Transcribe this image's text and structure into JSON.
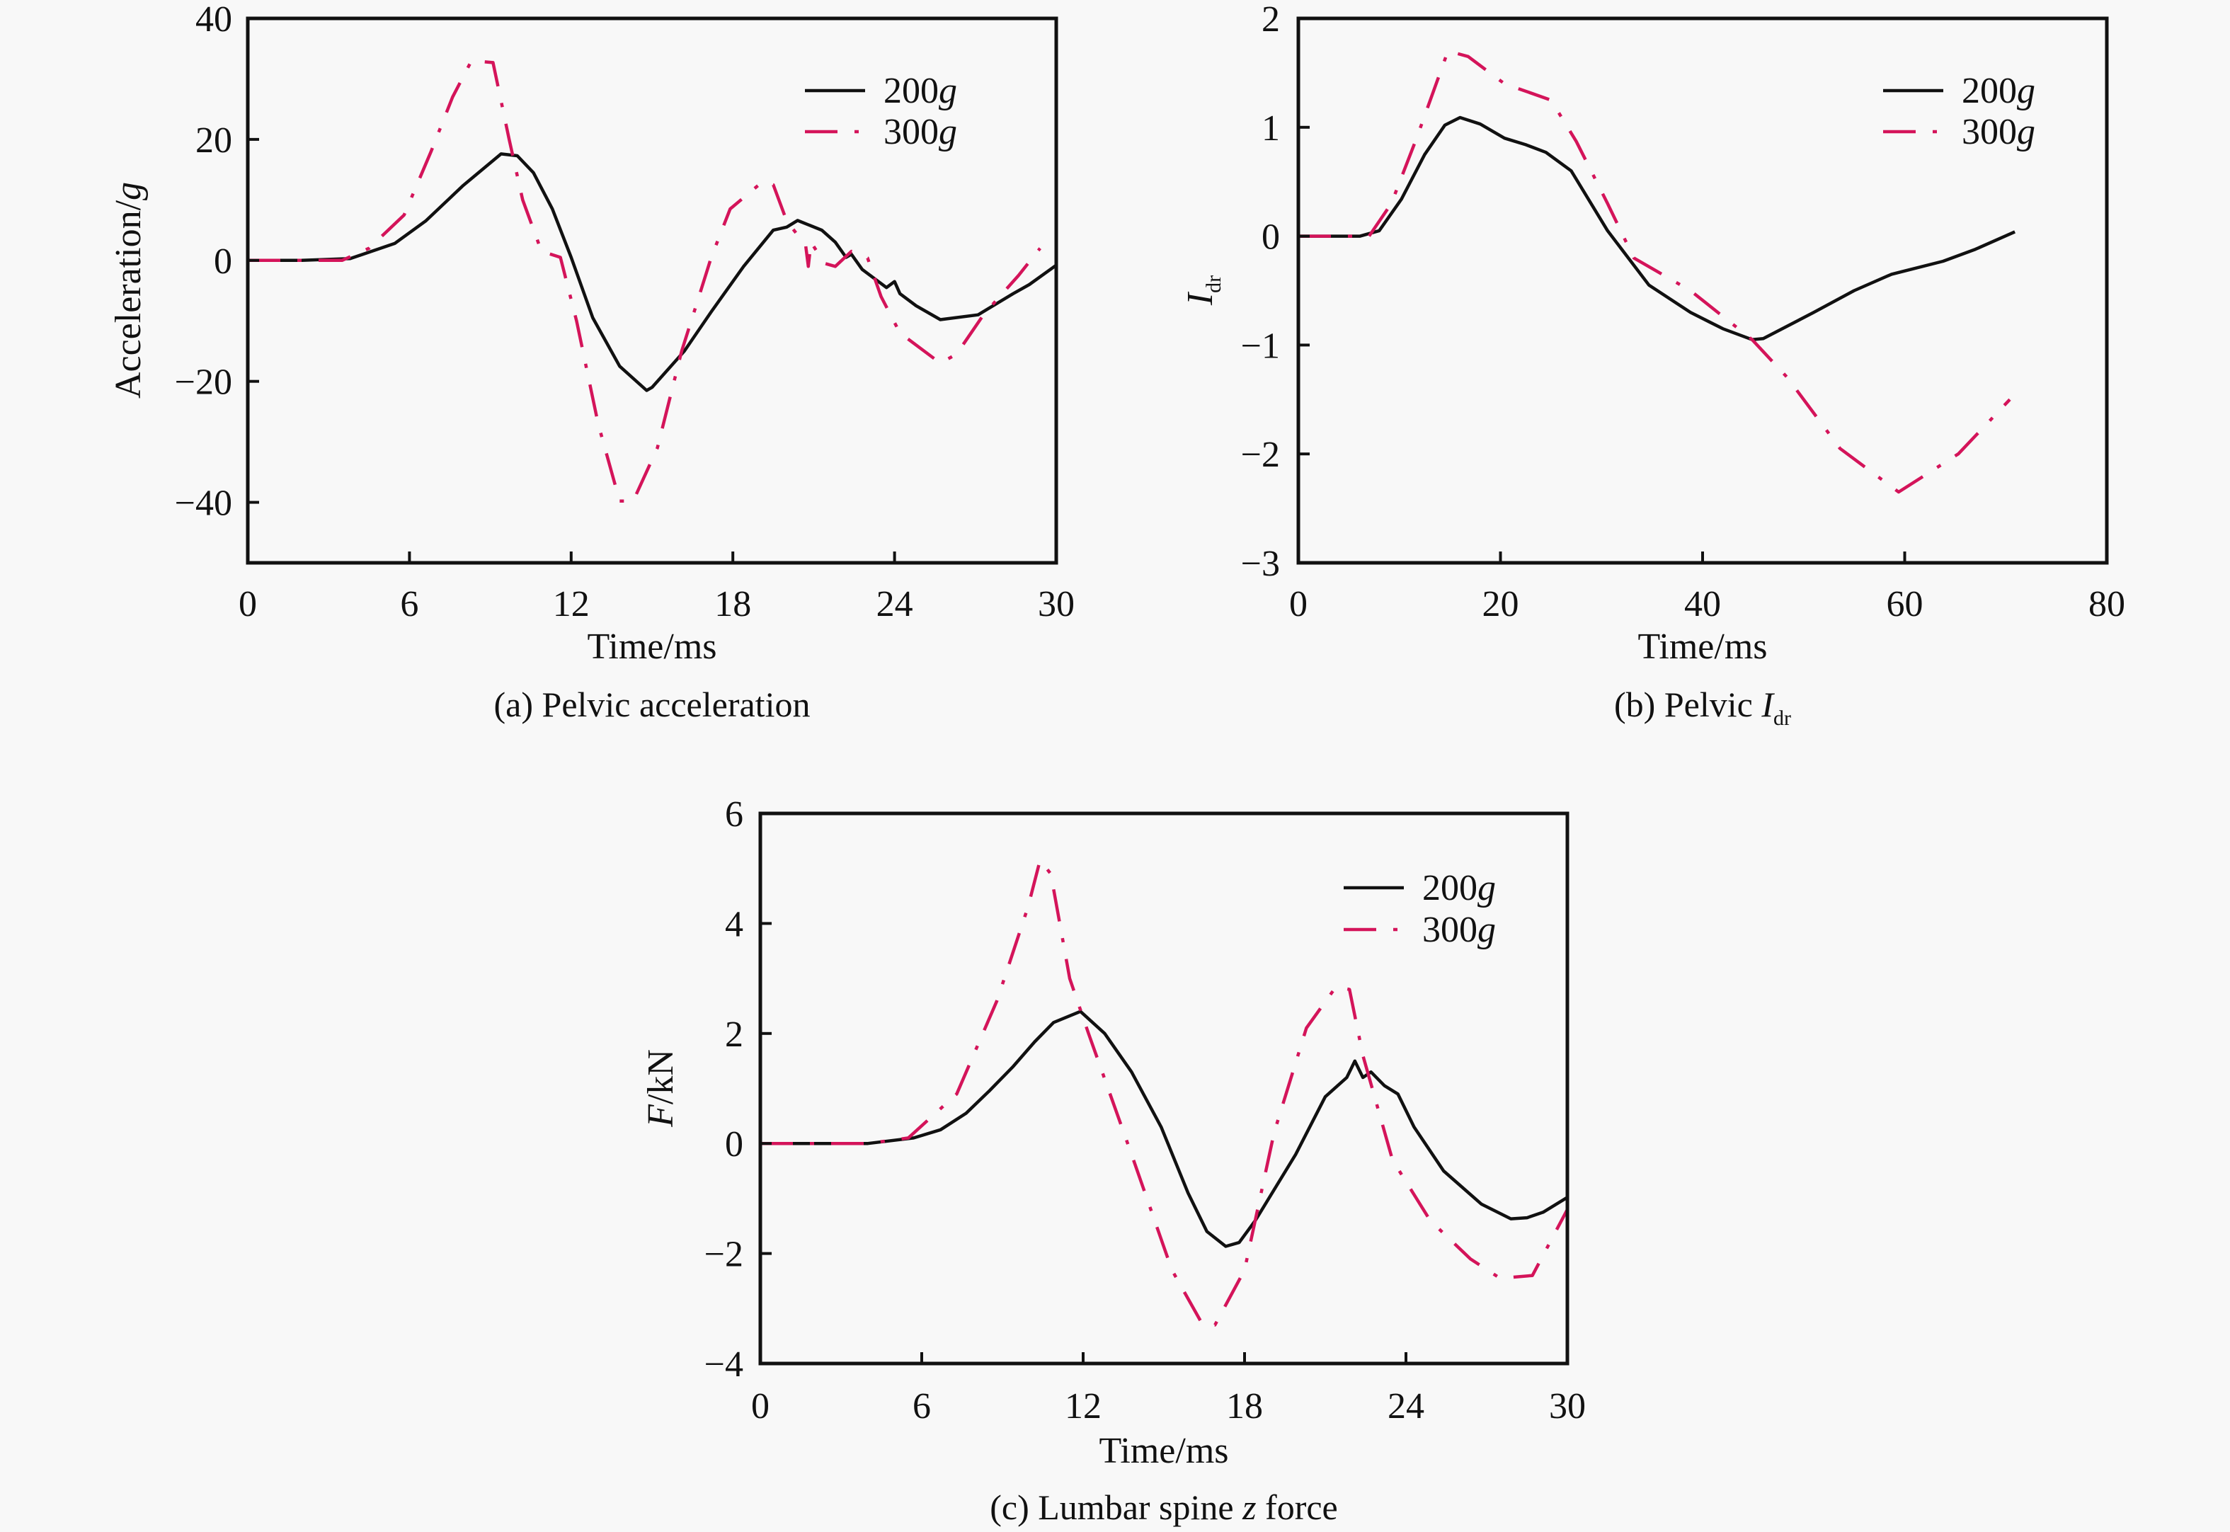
{
  "colors": {
    "series_200g": "#111111",
    "series_300g": "#d4145a",
    "background": "#f8f8f8"
  },
  "chart_data": [
    {
      "id": "a",
      "type": "line",
      "caption": "(a) Pelvic acceleration",
      "xlabel": "Time/ms",
      "ylabel": "Acceleration/g",
      "ylabel_italic_suffix": "g",
      "xlim": [
        0,
        30
      ],
      "ylim": [
        -50,
        40
      ],
      "xticks": [
        0,
        6,
        12,
        18,
        24,
        30
      ],
      "yticks": [
        40,
        20,
        0,
        -20,
        -40
      ],
      "ytick_labels": [
        "40",
        "20",
        "0",
        "−20",
        "−40"
      ],
      "xtick_labels": [
        "0",
        "6",
        "12",
        "18",
        "24",
        "30"
      ],
      "grid": false,
      "legend": "top-right",
      "series": [
        {
          "name": "200g",
          "style": "solid",
          "x": [
            0,
            2,
            3.8,
            5.45,
            6.6,
            8.0,
            9.4,
            10.0,
            10.6,
            11.3,
            12.0,
            12.8,
            13.8,
            14.8,
            15.0,
            16.2,
            17.2,
            18.4,
            19.5,
            20.0,
            20.4,
            21.3,
            21.8,
            22.2,
            22.4,
            22.8,
            23.7,
            24.0,
            24.2,
            24.8,
            25.7,
            27.1,
            28.4,
            29.0,
            30.0
          ],
          "y": [
            0,
            0,
            0.3,
            2.8,
            6.5,
            12.4,
            17.6,
            17.3,
            14.5,
            8.5,
            0.5,
            -9.5,
            -17.5,
            -21.5,
            -21,
            -15,
            -8.5,
            -1,
            5,
            5.5,
            6.6,
            5.0,
            3,
            0.5,
            1.0,
            -1.5,
            -4.5,
            -3.5,
            -5.5,
            -7.5,
            -9.8,
            -9,
            -5.5,
            -4,
            -0.8
          ]
        },
        {
          "name": "300g",
          "style": "dash-dot",
          "x": [
            0,
            3.5,
            4.5,
            5.8,
            6.8,
            7.6,
            8.3,
            9.1,
            9.7,
            10.2,
            10.9,
            11.6,
            12.2,
            13.0,
            13.8,
            14.3,
            15.2,
            16.1,
            16.6,
            17.2,
            17.9,
            19.1,
            19.5,
            20.0,
            20.7,
            20.8,
            20.9,
            21.4,
            21.8,
            22.4,
            23.0,
            23.5,
            24.2,
            25.7,
            26.3,
            27.3,
            28.6,
            29.4
          ],
          "y": [
            0,
            0,
            2,
            7.5,
            18,
            27,
            33,
            32.7,
            20,
            10,
            1.5,
            0.5,
            -10,
            -27,
            -39.8,
            -39.8,
            -31,
            -15,
            -8,
            0.5,
            8.5,
            13,
            12.5,
            6.5,
            2.5,
            -1,
            3,
            -0.5,
            -1,
            1.5,
            0.4,
            -6,
            -12,
            -17,
            -15.5,
            -9,
            -2.5,
            2
          ]
        }
      ]
    },
    {
      "id": "b",
      "type": "line",
      "caption": "(b) Pelvic I",
      "caption_subscript": "dr",
      "xlabel": "Time/ms",
      "ylabel": "I",
      "ylabel_subscript": "dr",
      "xlim": [
        0,
        80
      ],
      "ylim": [
        -3,
        2
      ],
      "xticks": [
        0,
        20,
        40,
        60,
        80
      ],
      "yticks": [
        2,
        1,
        0,
        -1,
        -2,
        -3
      ],
      "ytick_labels": [
        "2",
        "1",
        "0",
        "−1",
        "−2",
        "−3"
      ],
      "xtick_labels": [
        "0",
        "20",
        "40",
        "60",
        "80"
      ],
      "grid": false,
      "legend": "top-right",
      "series": [
        {
          "name": "200g",
          "style": "solid",
          "x": [
            0,
            6.1,
            8.0,
            10.2,
            12.5,
            14.5,
            16.0,
            18.0,
            20.4,
            22.5,
            24.5,
            27.0,
            30.6,
            34.7,
            38.8,
            42.0,
            44.9,
            46.0,
            51.0,
            55.0,
            58.7,
            63.8,
            67.0,
            70.9
          ],
          "y": [
            0,
            0,
            0.05,
            0.34,
            0.75,
            1.02,
            1.09,
            1.03,
            0.9,
            0.84,
            0.77,
            0.6,
            0.05,
            -0.45,
            -0.7,
            -0.85,
            -0.95,
            -0.94,
            -0.7,
            -0.5,
            -0.35,
            -0.23,
            -0.12,
            0.04
          ]
        },
        {
          "name": "300g",
          "style": "dash-dot",
          "x": [
            0,
            7.0,
            9.2,
            11.7,
            14.8,
            16.8,
            20.4,
            25.0,
            27.5,
            30.6,
            33.2,
            38.8,
            44.9,
            48.4,
            53.6,
            59.4,
            65.3,
            70.4
          ],
          "y": [
            0,
            0,
            0.3,
            0.9,
            1.7,
            1.65,
            1.4,
            1.25,
            0.87,
            0.3,
            -0.2,
            -0.5,
            -0.95,
            -1.3,
            -1.95,
            -2.35,
            -2.0,
            -1.5
          ]
        }
      ]
    },
    {
      "id": "c",
      "type": "line",
      "caption": "(c) Lumbar spine z force",
      "xlabel": "Time/ms",
      "ylabel": "F/kN",
      "xlim": [
        0,
        30
      ],
      "ylim": [
        -4,
        6
      ],
      "xticks": [
        0,
        6,
        12,
        18,
        24,
        30
      ],
      "yticks": [
        6,
        4,
        2,
        0,
        -2,
        -4
      ],
      "ytick_labels": [
        "6",
        "4",
        "2",
        "0",
        "−2",
        "−4"
      ],
      "xtick_labels": [
        "0",
        "6",
        "12",
        "18",
        "24",
        "30"
      ],
      "grid": false,
      "legend": "top-right",
      "series": [
        {
          "name": "200g",
          "style": "solid",
          "x": [
            0,
            4.0,
            5.7,
            6.7,
            7.65,
            8.5,
            9.4,
            10.2,
            10.9,
            11.9,
            12.8,
            13.8,
            14.9,
            15.9,
            16.6,
            17.3,
            17.8,
            18.4,
            19.9,
            21.0,
            21.8,
            22.1,
            22.4,
            22.7,
            23.2,
            23.7,
            24.3,
            25.4,
            26.8,
            27.9,
            28.5,
            29.1,
            30.0
          ],
          "y": [
            0,
            0,
            0.1,
            0.25,
            0.55,
            0.95,
            1.4,
            1.85,
            2.2,
            2.4,
            2.0,
            1.3,
            0.3,
            -0.9,
            -1.6,
            -1.87,
            -1.8,
            -1.4,
            -0.2,
            0.85,
            1.2,
            1.5,
            1.2,
            1.3,
            1.05,
            0.9,
            0.3,
            -0.5,
            -1.1,
            -1.37,
            -1.35,
            -1.25,
            -0.98
          ]
        },
        {
          "name": "300g",
          "style": "dash-dot",
          "x": [
            0,
            4.0,
            5.5,
            7.3,
            8.8,
            9.95,
            10.4,
            10.8,
            11.5,
            12.2,
            13.8,
            15.3,
            16.45,
            16.9,
            18.0,
            19.1,
            20.3,
            21.4,
            21.9,
            22.4,
            23.5,
            24.9,
            26.4,
            27.5,
            28.7,
            30.0
          ],
          "y": [
            0,
            0,
            0.1,
            0.9,
            2.6,
            4.3,
            5.15,
            4.9,
            3.0,
            2.0,
            -0.2,
            -2.3,
            -3.3,
            -3.3,
            -2.3,
            0.2,
            2.1,
            2.85,
            2.8,
            1.6,
            -0.3,
            -1.4,
            -2.1,
            -2.45,
            -2.4,
            -1.2
          ]
        }
      ]
    }
  ]
}
